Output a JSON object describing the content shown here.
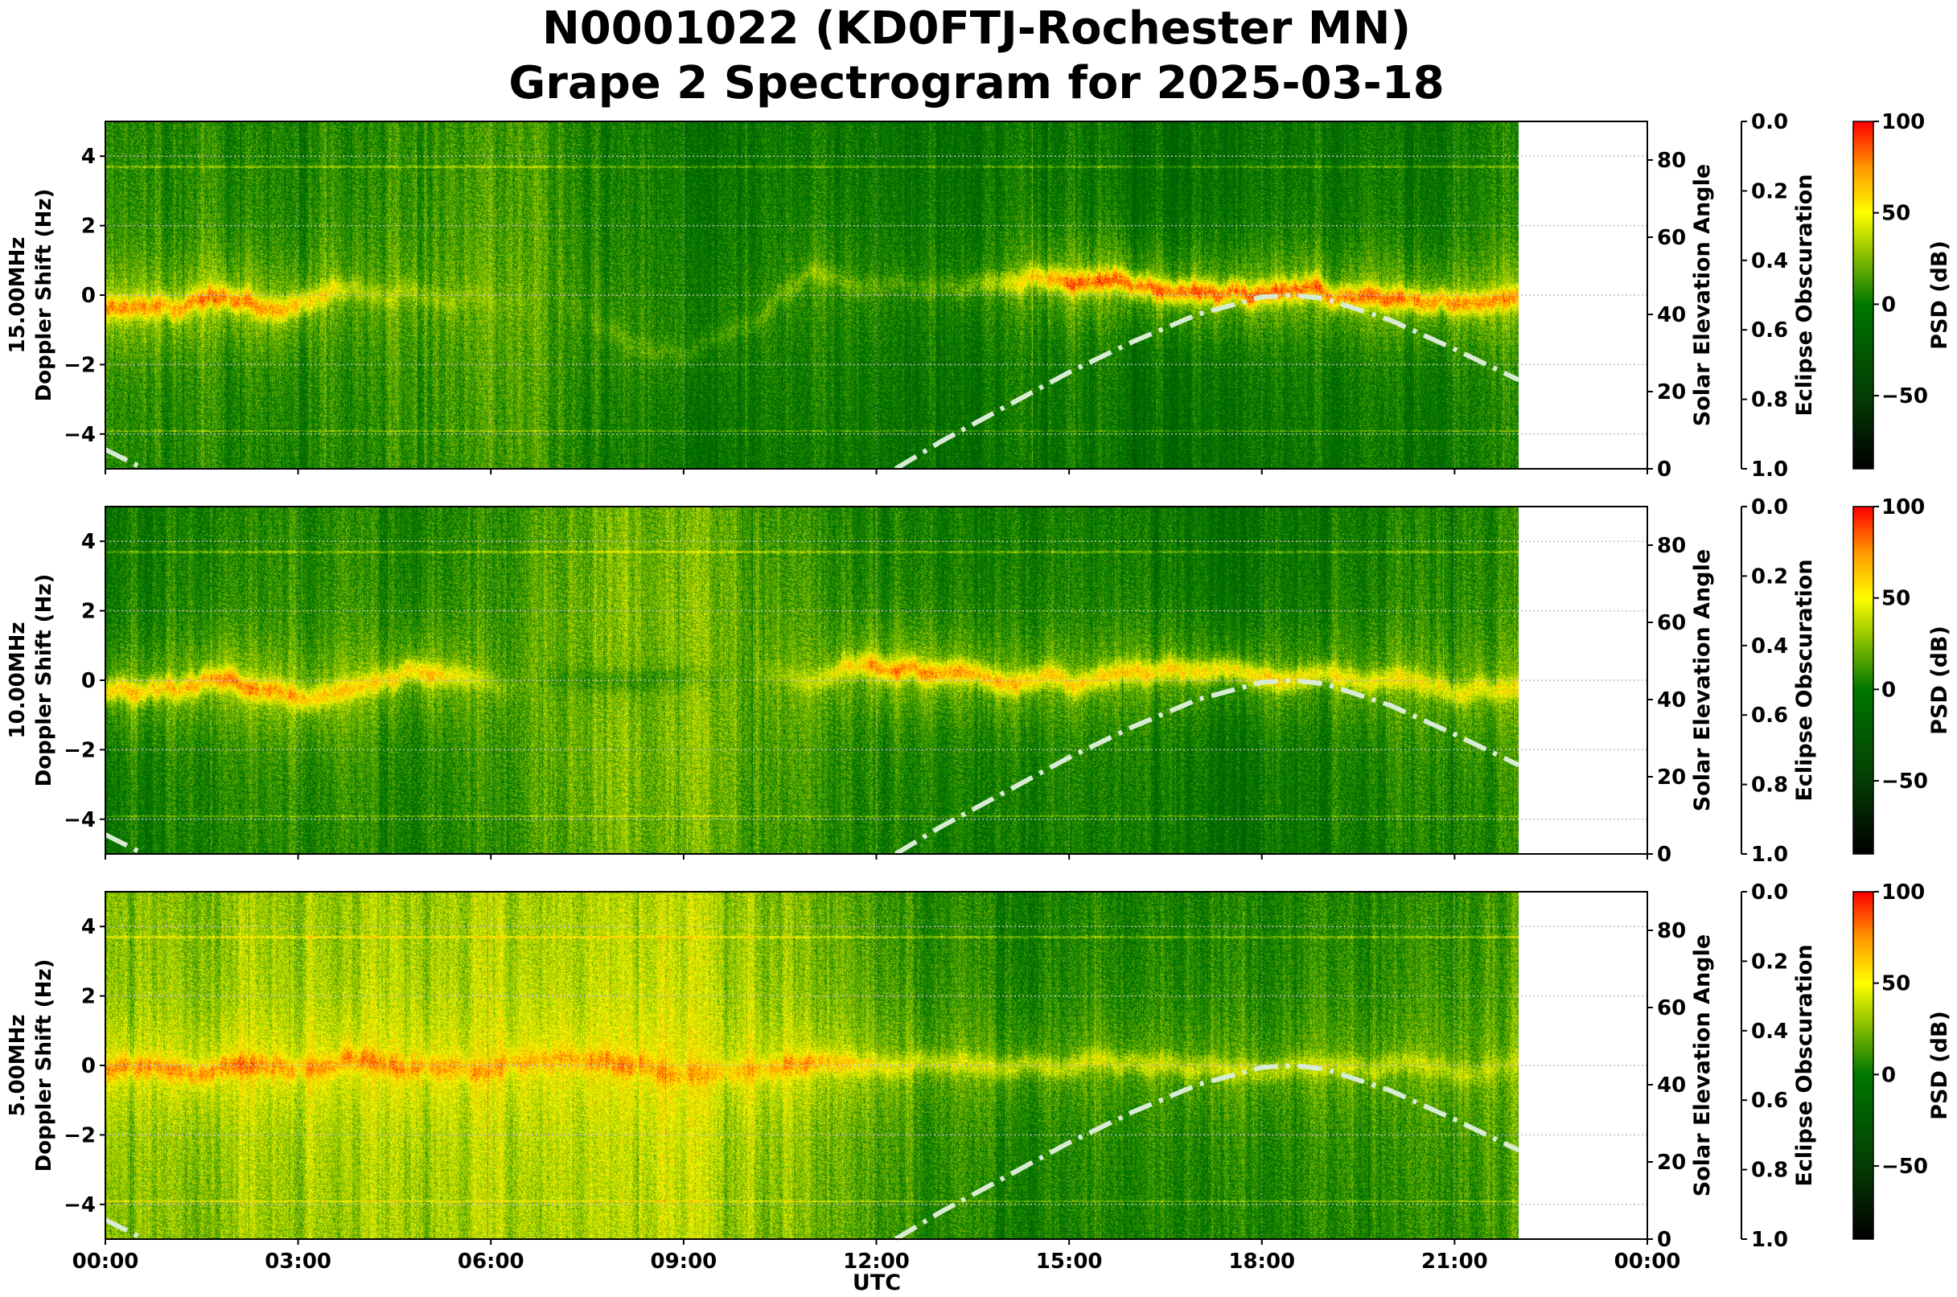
{
  "chart_data": {
    "type": "heatmap",
    "title_line1": "N0001022 (KD0FTJ-Rochester MN)",
    "title_line2": "Grape 2 Spectrogram for 2025-03-18",
    "xlabel": "UTC",
    "x_range_hours": [
      0,
      24
    ],
    "x_ticks": [
      "00:00",
      "03:00",
      "06:00",
      "09:00",
      "12:00",
      "15:00",
      "18:00",
      "21:00",
      "00:00"
    ],
    "data_end_hour": 22,
    "ylabel": "Doppler Shift (Hz)",
    "ylim": [
      -5,
      5
    ],
    "y_ticks": [
      "−4",
      "−2",
      "0",
      "2",
      "4"
    ],
    "y_tick_values": [
      -4,
      -2,
      0,
      2,
      4
    ],
    "right_axis": {
      "label": "Solar Elevation Angle",
      "range": [
        0,
        90
      ],
      "ticks": [
        "0",
        "20",
        "40",
        "60",
        "80"
      ],
      "tick_values": [
        0,
        20,
        40,
        60,
        80
      ]
    },
    "eclipse_axis": {
      "label": "Eclipse Obscuration",
      "range": [
        0.0,
        1.0
      ],
      "ticks": [
        "0.0",
        "0.2",
        "0.4",
        "0.6",
        "0.8",
        "1.0"
      ]
    },
    "colorbar": {
      "label": "PSD (dB)",
      "range": [
        -90,
        100
      ],
      "ticks": [
        "100",
        "50",
        "0",
        "−50"
      ],
      "tick_values": [
        100,
        50,
        0,
        -50
      ],
      "colors": [
        [
          -90,
          "#000000"
        ],
        [
          -50,
          "#053d05"
        ],
        [
          0,
          "#007800"
        ],
        [
          25,
          "#80bb00"
        ],
        [
          50,
          "#ffff00"
        ],
        [
          75,
          "#ff9900"
        ],
        [
          100,
          "#ff0000"
        ]
      ]
    },
    "solar_elevation": {
      "hours": [
        0,
        0.3,
        0.6,
        12.3,
        13,
        14,
        15,
        16,
        17,
        18,
        18.5,
        19,
        20,
        21,
        22
      ],
      "degrees": [
        5,
        2.5,
        0,
        0,
        7,
        16,
        25,
        33,
        40,
        44.5,
        45,
        44,
        38.5,
        31,
        23
      ],
      "color": "#d8ecd4"
    },
    "panels": [
      {
        "frequency": "15.00MHz",
        "trace_hz": [
          -0.3,
          -0.25,
          -0.1,
          -0.2,
          0.1,
          0,
          -0.1,
          0,
          -1,
          -1.8,
          -1,
          0.8,
          0.3,
          0.2,
          0.4,
          0.45,
          0.35,
          0.3,
          0.2,
          0,
          -0.1,
          -0.2,
          -0.2
        ],
        "trace_db": [
          58,
          55,
          62,
          50,
          28,
          25,
          20,
          15,
          15,
          10,
          10,
          22,
          10,
          10,
          28,
          62,
          62,
          62,
          58,
          58,
          58,
          58,
          55
        ],
        "background_db": [
          10,
          10,
          10,
          8,
          12,
          12,
          15,
          15,
          5,
          0,
          0,
          5,
          -2,
          -2,
          0,
          2,
          0,
          -2,
          -2,
          0,
          0,
          5,
          8
        ]
      },
      {
        "frequency": "10.00MHz",
        "trace_hz": [
          -0.3,
          -0.2,
          0.1,
          -0.7,
          0,
          0.4,
          -0.1,
          0,
          0,
          0,
          0.1,
          0.2,
          0.4,
          0.3,
          0.2,
          0.15,
          0.15,
          0.1,
          0.1,
          0,
          0,
          -0.1,
          -0.1
        ],
        "trace_db": [
          52,
          50,
          58,
          52,
          45,
          52,
          25,
          15,
          15,
          20,
          20,
          32,
          58,
          55,
          50,
          45,
          45,
          42,
          42,
          40,
          40,
          40,
          40
        ],
        "background_db": [
          8,
          8,
          8,
          10,
          10,
          10,
          12,
          22,
          28,
          30,
          20,
          15,
          8,
          5,
          5,
          5,
          3,
          0,
          -2,
          5,
          8,
          10,
          12
        ]
      },
      {
        "frequency": "5.00MHz",
        "trace_hz": [
          -0.2,
          -0.1,
          0.1,
          -0.1,
          0,
          0.2,
          -0.1,
          0.1,
          0.2,
          -0.1,
          0.1,
          0.2,
          0.05,
          0.05,
          0.05,
          0.05,
          0.05,
          0.05,
          0.05,
          0.05,
          0,
          0,
          0
        ],
        "trace_db": [
          62,
          62,
          68,
          62,
          68,
          62,
          62,
          62,
          68,
          62,
          62,
          62,
          38,
          32,
          32,
          32,
          32,
          32,
          32,
          32,
          32,
          32,
          32
        ],
        "background_db": [
          30,
          32,
          35,
          38,
          38,
          38,
          40,
          42,
          42,
          45,
          40,
          30,
          15,
          10,
          8,
          8,
          8,
          8,
          10,
          10,
          12,
          15,
          20
        ]
      }
    ]
  }
}
